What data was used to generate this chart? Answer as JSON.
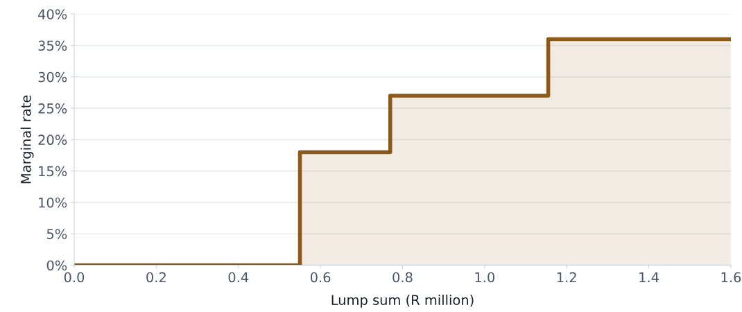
{
  "chart_data": {
    "type": "step",
    "xlabel": "Lump sum (R million)",
    "ylabel": "Marginal rate",
    "x": [
      0,
      0.55,
      0.77,
      1.155,
      1.6
    ],
    "series": [
      {
        "color": "#8b5a1b",
        "values": [
          0,
          18,
          27,
          36,
          36
        ]
      }
    ],
    "xlim": [
      0,
      1.6
    ],
    "xticks": [
      {
        "value": 0,
        "label": "0.0"
      },
      0.2,
      0.4,
      0.6,
      0.8,
      {
        "value": 1,
        "label": "1.0"
      },
      1.2,
      1.4,
      1.6
    ],
    "ylim": [
      0,
      40
    ],
    "yticks": [
      {
        "value": 0,
        "label": "0%"
      },
      {
        "value": 5,
        "label": "5%"
      },
      {
        "value": 10,
        "label": "10%"
      },
      {
        "value": 15,
        "label": "15%"
      },
      {
        "value": 20,
        "label": "20%"
      },
      {
        "value": 25,
        "label": "25%"
      },
      {
        "value": 30,
        "label": "30%"
      },
      {
        "value": 35,
        "label": "35%"
      },
      {
        "value": 40,
        "label": "40%"
      }
    ],
    "grid": "y",
    "legend": false
  }
}
